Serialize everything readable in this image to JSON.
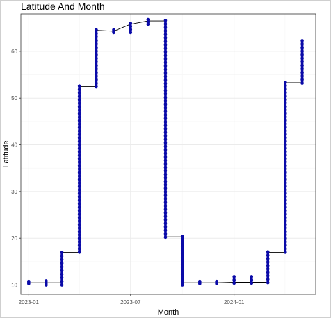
{
  "chart_data": {
    "type": "scatter",
    "title": "Latitude And Month",
    "xlabel": "Month",
    "ylabel": "Latitude",
    "xlim": [
      "2022-12-18",
      "2024-05-25"
    ],
    "ylim": [
      8,
      68
    ],
    "x_ticks": [
      {
        "date": "2023-01-01",
        "label": "2023-01"
      },
      {
        "date": "2023-07-01",
        "label": "2023-07"
      },
      {
        "date": "2024-01-01",
        "label": "2024-01"
      }
    ],
    "y_ticks": [
      10,
      20,
      30,
      40,
      50,
      60
    ],
    "grid": true,
    "colors": {
      "points": "#0a0aa8",
      "line": "#000000",
      "panel_border": "#333333",
      "grid_major": "#ebebeb",
      "grid_minor": "#f5f5f5"
    },
    "step_line": [
      [
        "2023-01-01",
        10.5
      ],
      [
        "2023-02-01",
        10.5
      ],
      [
        "2023-02-01",
        10.5
      ],
      [
        "2023-03-01",
        10.5
      ],
      [
        "2023-03-01",
        17.0
      ],
      [
        "2023-04-01",
        17.0
      ],
      [
        "2023-04-01",
        52.5
      ],
      [
        "2023-05-01",
        52.5
      ],
      [
        "2023-05-01",
        64.5
      ],
      [
        "2023-06-01",
        64.3
      ],
      [
        "2023-06-01",
        64.3
      ],
      [
        "2023-07-01",
        65.8
      ],
      [
        "2023-07-01",
        65.8
      ],
      [
        "2023-08-01",
        66.5
      ],
      [
        "2023-08-01",
        66.5
      ],
      [
        "2023-09-01",
        66.5
      ],
      [
        "2023-09-01",
        20.3
      ],
      [
        "2023-10-01",
        20.3
      ],
      [
        "2023-10-01",
        10.5
      ],
      [
        "2023-11-01",
        10.5
      ],
      [
        "2023-11-01",
        10.5
      ],
      [
        "2023-12-01",
        10.5
      ],
      [
        "2023-12-01",
        10.5
      ],
      [
        "2024-01-01",
        10.6
      ],
      [
        "2024-01-01",
        10.6
      ],
      [
        "2024-02-01",
        10.6
      ],
      [
        "2024-02-01",
        10.6
      ],
      [
        "2024-03-01",
        10.6
      ],
      [
        "2024-03-01",
        17.0
      ],
      [
        "2024-04-01",
        17.0
      ],
      [
        "2024-04-01",
        53.3
      ],
      [
        "2024-05-01",
        53.3
      ]
    ],
    "point_columns": [
      {
        "date": "2023-01-01",
        "ymin": 10.3,
        "ymax": 10.8
      },
      {
        "date": "2023-02-01",
        "ymin": 10.0,
        "ymax": 10.9
      },
      {
        "date": "2023-03-01",
        "ymin": 10.0,
        "ymax": 17.0
      },
      {
        "date": "2023-04-01",
        "ymin": 17.0,
        "ymax": 52.6
      },
      {
        "date": "2023-05-01",
        "ymin": 52.4,
        "ymax": 64.6
      },
      {
        "date": "2023-06-01",
        "ymin": 64.0,
        "ymax": 64.6
      },
      {
        "date": "2023-07-01",
        "ymin": 64.0,
        "ymax": 66.0
      },
      {
        "date": "2023-08-01",
        "ymin": 65.8,
        "ymax": 66.8
      },
      {
        "date": "2023-09-01",
        "ymin": 20.2,
        "ymax": 66.6
      },
      {
        "date": "2023-10-01",
        "ymin": 10.0,
        "ymax": 20.4
      },
      {
        "date": "2023-11-01",
        "ymin": 10.3,
        "ymax": 10.8
      },
      {
        "date": "2023-12-01",
        "ymin": 10.3,
        "ymax": 10.8
      },
      {
        "date": "2024-01-01",
        "ymin": 10.4,
        "ymax": 11.8
      },
      {
        "date": "2024-02-01",
        "ymin": 10.4,
        "ymax": 11.8
      },
      {
        "date": "2024-03-01",
        "ymin": 10.5,
        "ymax": 17.1
      },
      {
        "date": "2024-04-01",
        "ymin": 17.0,
        "ymax": 53.4
      },
      {
        "date": "2024-05-01",
        "ymin": 53.2,
        "ymax": 62.3
      }
    ]
  }
}
